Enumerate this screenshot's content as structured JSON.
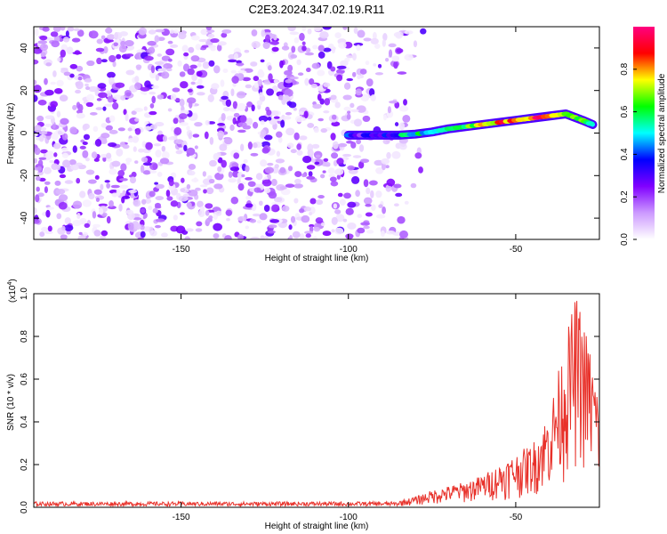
{
  "title": "C2E3.2024.347.02.19.R11",
  "chart_data": [
    {
      "type": "heatmap",
      "xlabel": "Height of straight line (km)",
      "ylabel": "Frequency (Hz)",
      "xlim": [
        -194,
        -25
      ],
      "ylim": [
        -50,
        50
      ],
      "xticks": [
        {
          "value": -150,
          "label": "-150"
        },
        {
          "value": -100,
          "label": "-100"
        },
        {
          "value": -50,
          "label": "-50"
        }
      ],
      "yticks": [
        {
          "value": 40,
          "label": "40"
        },
        {
          "value": 20,
          "label": "20"
        },
        {
          "value": 0,
          "label": "0"
        },
        {
          "value": -20,
          "label": "-20"
        },
        {
          "value": -40,
          "label": "-40"
        }
      ],
      "colorbar": {
        "label": "Normalized spectral amplitude",
        "range": [
          0,
          1
        ],
        "ticks": [
          {
            "value": 0.0,
            "label": "0.0"
          },
          {
            "value": 0.2,
            "label": "0.2"
          },
          {
            "value": 0.4,
            "label": "0.4"
          },
          {
            "value": 0.6,
            "label": "0.6"
          },
          {
            "value": 0.8,
            "label": "0.8"
          }
        ],
        "colormap": [
          "#ffffff",
          "#cc99ff",
          "#8000ff",
          "#0000ff",
          "#00ffff",
          "#00ff00",
          "#ffff00",
          "#ff0000",
          "#ff0080"
        ]
      },
      "ridge": {
        "description_free": true,
        "points": [
          {
            "x": -100,
            "y": -1,
            "amp": 0.35
          },
          {
            "x": -95,
            "y": -1,
            "amp": 0.3
          },
          {
            "x": -90,
            "y": -1,
            "amp": 0.35
          },
          {
            "x": -85,
            "y": -1,
            "amp": 0.45
          },
          {
            "x": -80,
            "y": -0.5,
            "amp": 0.55
          },
          {
            "x": -75,
            "y": 0.5,
            "amp": 0.5
          },
          {
            "x": -70,
            "y": 2,
            "amp": 0.6
          },
          {
            "x": -65,
            "y": 3,
            "amp": 0.6
          },
          {
            "x": -60,
            "y": 4,
            "amp": 0.7
          },
          {
            "x": -55,
            "y": 5,
            "amp": 0.85
          },
          {
            "x": -50,
            "y": 6,
            "amp": 0.75
          },
          {
            "x": -45,
            "y": 7,
            "amp": 0.9
          },
          {
            "x": -40,
            "y": 8,
            "amp": 0.8
          },
          {
            "x": -35,
            "y": 9,
            "amp": 0.7
          },
          {
            "x": -30,
            "y": 6,
            "amp": 0.6
          },
          {
            "x": -27,
            "y": 4,
            "amp": 0.5
          }
        ]
      }
    },
    {
      "type": "line",
      "xlabel": "Height of straight line (km)",
      "ylabel": "SNR (10 * v/v)",
      "yscale_label": "(x10",
      "yscale_exp": "4",
      "xlim": [
        -194,
        -25
      ],
      "ylim": [
        0,
        1.0
      ],
      "xticks": [
        {
          "value": -150,
          "label": "-150"
        },
        {
          "value": -100,
          "label": "-100"
        },
        {
          "value": -50,
          "label": "-50"
        }
      ],
      "yticks": [
        {
          "value": 0.0,
          "label": "0.0"
        },
        {
          "value": 0.2,
          "label": "0.2"
        },
        {
          "value": 0.4,
          "label": "0.4"
        },
        {
          "value": 0.6,
          "label": "0.6"
        },
        {
          "value": 0.8,
          "label": "0.8"
        },
        {
          "value": 1.0,
          "label": "1.0"
        }
      ],
      "series": [
        {
          "color": "#e8312a",
          "envelope": [
            {
              "x": -194,
              "y": 0.02
            },
            {
              "x": -150,
              "y": 0.02
            },
            {
              "x": -100,
              "y": 0.02
            },
            {
              "x": -85,
              "y": 0.03
            },
            {
              "x": -80,
              "y": 0.05
            },
            {
              "x": -75,
              "y": 0.08
            },
            {
              "x": -70,
              "y": 0.1
            },
            {
              "x": -65,
              "y": 0.12
            },
            {
              "x": -60,
              "y": 0.15
            },
            {
              "x": -55,
              "y": 0.2
            },
            {
              "x": -50,
              "y": 0.25
            },
            {
              "x": -45,
              "y": 0.3
            },
            {
              "x": -40,
              "y": 0.45
            },
            {
              "x": -35,
              "y": 0.8
            },
            {
              "x": -32,
              "y": 1.0
            },
            {
              "x": -30,
              "y": 0.9
            },
            {
              "x": -27,
              "y": 0.7
            },
            {
              "x": -25,
              "y": 0.5
            }
          ]
        }
      ]
    }
  ]
}
